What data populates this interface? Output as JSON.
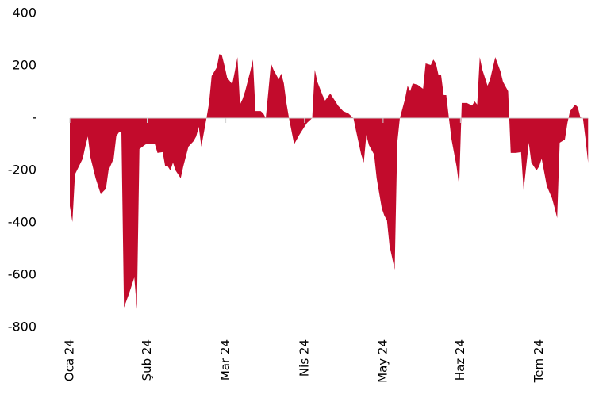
{
  "chart_data": {
    "type": "area",
    "x": [
      0,
      1,
      2,
      5,
      6,
      7,
      8,
      10,
      12,
      13,
      14,
      15,
      17,
      18,
      19,
      20,
      21,
      23,
      25,
      26,
      27,
      29,
      30,
      33,
      34,
      36,
      37,
      38,
      39,
      40,
      41,
      43,
      44,
      46,
      48,
      49,
      50,
      51,
      53,
      54,
      55,
      57,
      58,
      59,
      60,
      61,
      63,
      64,
      65,
      66,
      67,
      68,
      70,
      71,
      72,
      74,
      75,
      76,
      77,
      78,
      79,
      81,
      82,
      83,
      84,
      85,
      87,
      89,
      91,
      92,
      94,
      95,
      96,
      98,
      99,
      101,
      103,
      104,
      106,
      108,
      110,
      111,
      113,
      114,
      115,
      116,
      118,
      119,
      121,
      122,
      123,
      124,
      126,
      127,
      128,
      130,
      131,
      132,
      133,
      135,
      137,
      138,
      140,
      141,
      142,
      143,
      144,
      145,
      146,
      147,
      148,
      150,
      151,
      152,
      154,
      156,
      157,
      158,
      159,
      160,
      162,
      163,
      165,
      167,
      168,
      170,
      171,
      173,
      175,
      176,
      178,
      179,
      181,
      182,
      183,
      185,
      187,
      188,
      189,
      190,
      192,
      193,
      194,
      196,
      197,
      198,
      199,
      200,
      201
    ],
    "values": [
      -336,
      -397,
      -215,
      -155,
      -109,
      -70,
      -150,
      -230,
      -291,
      -280,
      -270,
      -200,
      -155,
      -70,
      -55,
      -52,
      -724,
      -670,
      -609,
      -730,
      -118,
      -103,
      -97,
      -100,
      -133,
      -130,
      -185,
      -185,
      -200,
      -170,
      -200,
      -230,
      -185,
      -109,
      -88,
      -70,
      -33,
      -109,
      0,
      58,
      161,
      194,
      245,
      239,
      200,
      155,
      130,
      179,
      233,
      52,
      73,
      103,
      179,
      224,
      27,
      27,
      18,
      0,
      103,
      209,
      185,
      148,
      170,
      133,
      58,
      0,
      -100,
      -64,
      -33,
      -18,
      0,
      185,
      139,
      88,
      67,
      94,
      64,
      48,
      27,
      18,
      0,
      -48,
      -139,
      -170,
      -64,
      -103,
      -139,
      -230,
      -345,
      -373,
      -391,
      -488,
      -579,
      -94,
      0,
      73,
      124,
      103,
      133,
      127,
      112,
      209,
      203,
      224,
      209,
      164,
      164,
      88,
      88,
      3,
      -79,
      -185,
      -260,
      58,
      58,
      48,
      64,
      52,
      233,
      185,
      124,
      148,
      233,
      179,
      139,
      103,
      -133,
      -133,
      -130,
      -276,
      -94,
      -170,
      -200,
      -185,
      -155,
      -260,
      -306,
      -342,
      -382,
      -94,
      -82,
      -18,
      27,
      52,
      42,
      3,
      0,
      -79,
      -170
    ],
    "color": "#c20b2c",
    "xlim": [
      0,
      202
    ],
    "xticks": [
      {
        "value": 0,
        "label": "Oca 24"
      },
      {
        "value": 30,
        "label": "Şub 24"
      },
      {
        "value": 60.5,
        "label": "Mar 24"
      },
      {
        "value": 91,
        "label": "Nis 24"
      },
      {
        "value": 121.5,
        "label": "May 24"
      },
      {
        "value": 151.5,
        "label": "Haz 24"
      },
      {
        "value": 182,
        "label": "Tem 24"
      }
    ],
    "ylim": [
      -800,
      400
    ],
    "yticks": [
      400,
      200,
      {
        "value": 0,
        "label": "-"
      },
      -200,
      -400,
      -600,
      -800
    ]
  }
}
